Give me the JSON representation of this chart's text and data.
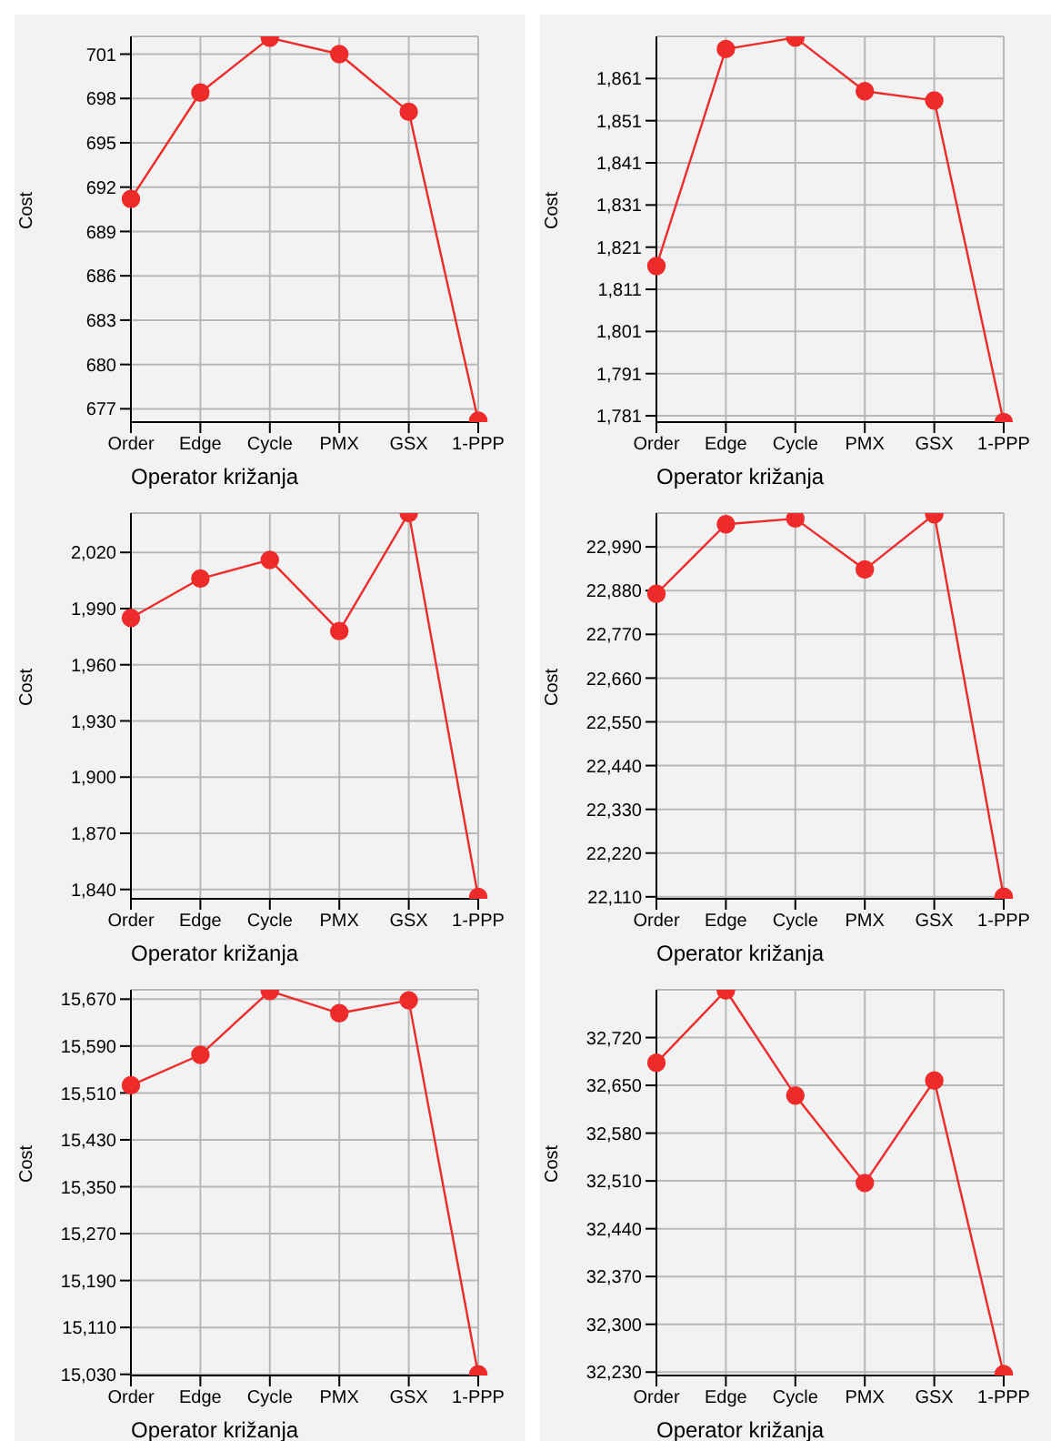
{
  "chart_data": [
    {
      "type": "line",
      "xlabel": "Operator križanja",
      "ylabel": "Cost",
      "categories": [
        "Order",
        "Edge",
        "Cycle",
        "PMX",
        "GSX",
        "1-PPP"
      ],
      "series": [
        {
          "color": "#ee2b2b",
          "values": [
            691.2,
            698.4,
            702.1,
            701.0,
            697.1,
            676.2
          ]
        }
      ],
      "ylim": [
        676.1,
        702.2
      ],
      "yticks": [
        677,
        680,
        683,
        686,
        689,
        692,
        695,
        698,
        701
      ],
      "grid": true,
      "marker": "circle",
      "legend": false
    },
    {
      "type": "line",
      "xlabel": "Operator križanja",
      "ylabel": "Cost",
      "categories": [
        "Order",
        "Edge",
        "Cycle",
        "PMX",
        "GSX",
        "1-PPP"
      ],
      "series": [
        {
          "color": "#ee2b2b",
          "values": [
            1816.5,
            1868.0,
            1870.7,
            1858.0,
            1855.8,
            1779.5
          ]
        }
      ],
      "ylim": [
        1779.5,
        1871
      ],
      "yticks": [
        {
          "value": 1781,
          "label": "1,781"
        },
        {
          "value": 1791,
          "label": "1,791"
        },
        {
          "value": 1801,
          "label": "1,801"
        },
        {
          "value": 1811,
          "label": "1,811"
        },
        {
          "value": 1821,
          "label": "1,821"
        },
        {
          "value": 1831,
          "label": "1,831"
        },
        {
          "value": 1841,
          "label": "1,841"
        },
        {
          "value": 1851,
          "label": "1,851"
        },
        {
          "value": 1861,
          "label": "1,861"
        }
      ],
      "grid": true,
      "marker": "circle",
      "legend": false
    },
    {
      "type": "line",
      "xlabel": "Operator križanja",
      "ylabel": "Cost",
      "categories": [
        "Order",
        "Edge",
        "Cycle",
        "PMX",
        "GSX",
        "1-PPP"
      ],
      "series": [
        {
          "color": "#ee2b2b",
          "values": [
            1985,
            2006,
            2016,
            1978,
            2041,
            1836
          ]
        }
      ],
      "ylim": [
        1835,
        2041
      ],
      "yticks": [
        {
          "value": 1840,
          "label": "1,840"
        },
        {
          "value": 1870,
          "label": "1,870"
        },
        {
          "value": 1900,
          "label": "1,900"
        },
        {
          "value": 1930,
          "label": "1,930"
        },
        {
          "value": 1960,
          "label": "1,960"
        },
        {
          "value": 1990,
          "label": "1,990"
        },
        {
          "value": 2020,
          "label": "2,020"
        }
      ],
      "grid": true,
      "marker": "circle",
      "legend": false
    },
    {
      "type": "line",
      "xlabel": "Operator križanja",
      "ylabel": "Cost",
      "categories": [
        "Order",
        "Edge",
        "Cycle",
        "PMX",
        "GSX",
        "1-PPP"
      ],
      "series": [
        {
          "color": "#ee2b2b",
          "values": [
            22872,
            23047,
            23061,
            22933,
            23072,
            22110
          ]
        }
      ],
      "ylim": [
        22105,
        23075
      ],
      "yticks": [
        {
          "value": 22110,
          "label": "22,110"
        },
        {
          "value": 22220,
          "label": "22,220"
        },
        {
          "value": 22330,
          "label": "22,330"
        },
        {
          "value": 22440,
          "label": "22,440"
        },
        {
          "value": 22550,
          "label": "22,550"
        },
        {
          "value": 22660,
          "label": "22,660"
        },
        {
          "value": 22770,
          "label": "22,770"
        },
        {
          "value": 22880,
          "label": "22,880"
        },
        {
          "value": 22990,
          "label": "22,990"
        }
      ],
      "grid": true,
      "marker": "circle",
      "legend": false
    },
    {
      "type": "line",
      "xlabel": "Operator križanja",
      "ylabel": "Cost",
      "categories": [
        "Order",
        "Edge",
        "Cycle",
        "PMX",
        "GSX",
        "1-PPP"
      ],
      "series": [
        {
          "color": "#ee2b2b",
          "values": [
            15523,
            15575,
            15684,
            15646,
            15668,
            15030
          ]
        }
      ],
      "ylim": [
        15028,
        15686
      ],
      "yticks": [
        {
          "value": 15030,
          "label": "15,030"
        },
        {
          "value": 15110,
          "label": "15,110"
        },
        {
          "value": 15190,
          "label": "15,190"
        },
        {
          "value": 15270,
          "label": "15,270"
        },
        {
          "value": 15350,
          "label": "15,350"
        },
        {
          "value": 15430,
          "label": "15,430"
        },
        {
          "value": 15510,
          "label": "15,510"
        },
        {
          "value": 15590,
          "label": "15,590"
        },
        {
          "value": 15670,
          "label": "15,670"
        }
      ],
      "grid": true,
      "marker": "circle",
      "legend": false
    },
    {
      "type": "line",
      "xlabel": "Operator križanja",
      "ylabel": "Cost",
      "categories": [
        "Order",
        "Edge",
        "Cycle",
        "PMX",
        "GSX",
        "1-PPP"
      ],
      "series": [
        {
          "color": "#ee2b2b",
          "values": [
            32683,
            32789,
            32635,
            32507,
            32657,
            32227
          ]
        }
      ],
      "ylim": [
        32225,
        32790
      ],
      "yticks": [
        {
          "value": 32230,
          "label": "32,230"
        },
        {
          "value": 32300,
          "label": "32,300"
        },
        {
          "value": 32370,
          "label": "32,370"
        },
        {
          "value": 32440,
          "label": "32,440"
        },
        {
          "value": 32510,
          "label": "32,510"
        },
        {
          "value": 32580,
          "label": "32,580"
        },
        {
          "value": 32650,
          "label": "32,650"
        },
        {
          "value": 32720,
          "label": "32,720"
        }
      ],
      "grid": true,
      "marker": "circle",
      "legend": false
    }
  ]
}
